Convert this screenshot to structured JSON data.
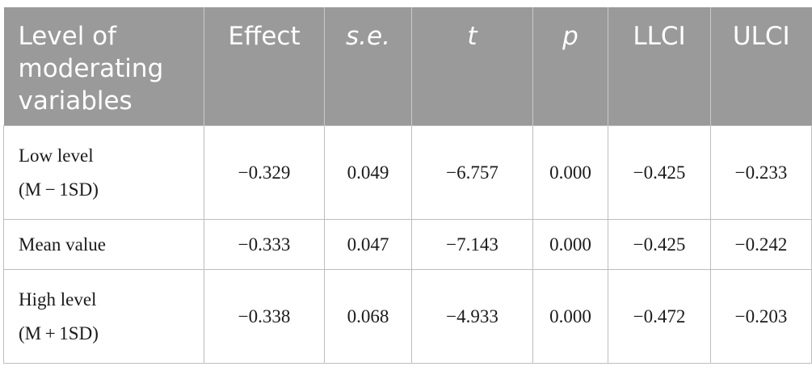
{
  "table": {
    "headers": [
      "Level of moderating variables",
      "Effect",
      "s.e.",
      "t",
      "p",
      "LLCI",
      "ULCI"
    ],
    "rows": [
      {
        "label_line1": "Low level",
        "label_line2": "(M − 1SD)",
        "effect": "−0.329",
        "se": "0.049",
        "t": "−6.757",
        "p": "0.000",
        "llci": "−0.425",
        "ulci": "−0.233"
      },
      {
        "label_line1": "Mean value",
        "label_line2": "",
        "effect": "−0.333",
        "se": "0.047",
        "t": "−7.143",
        "p": "0.000",
        "llci": "−0.425",
        "ulci": "−0.242"
      },
      {
        "label_line1": "High level",
        "label_line2": "(M + 1SD)",
        "effect": "−0.338",
        "se": "0.068",
        "t": "−4.933",
        "p": "0.000",
        "llci": "−0.472",
        "ulci": "−0.203"
      }
    ]
  }
}
